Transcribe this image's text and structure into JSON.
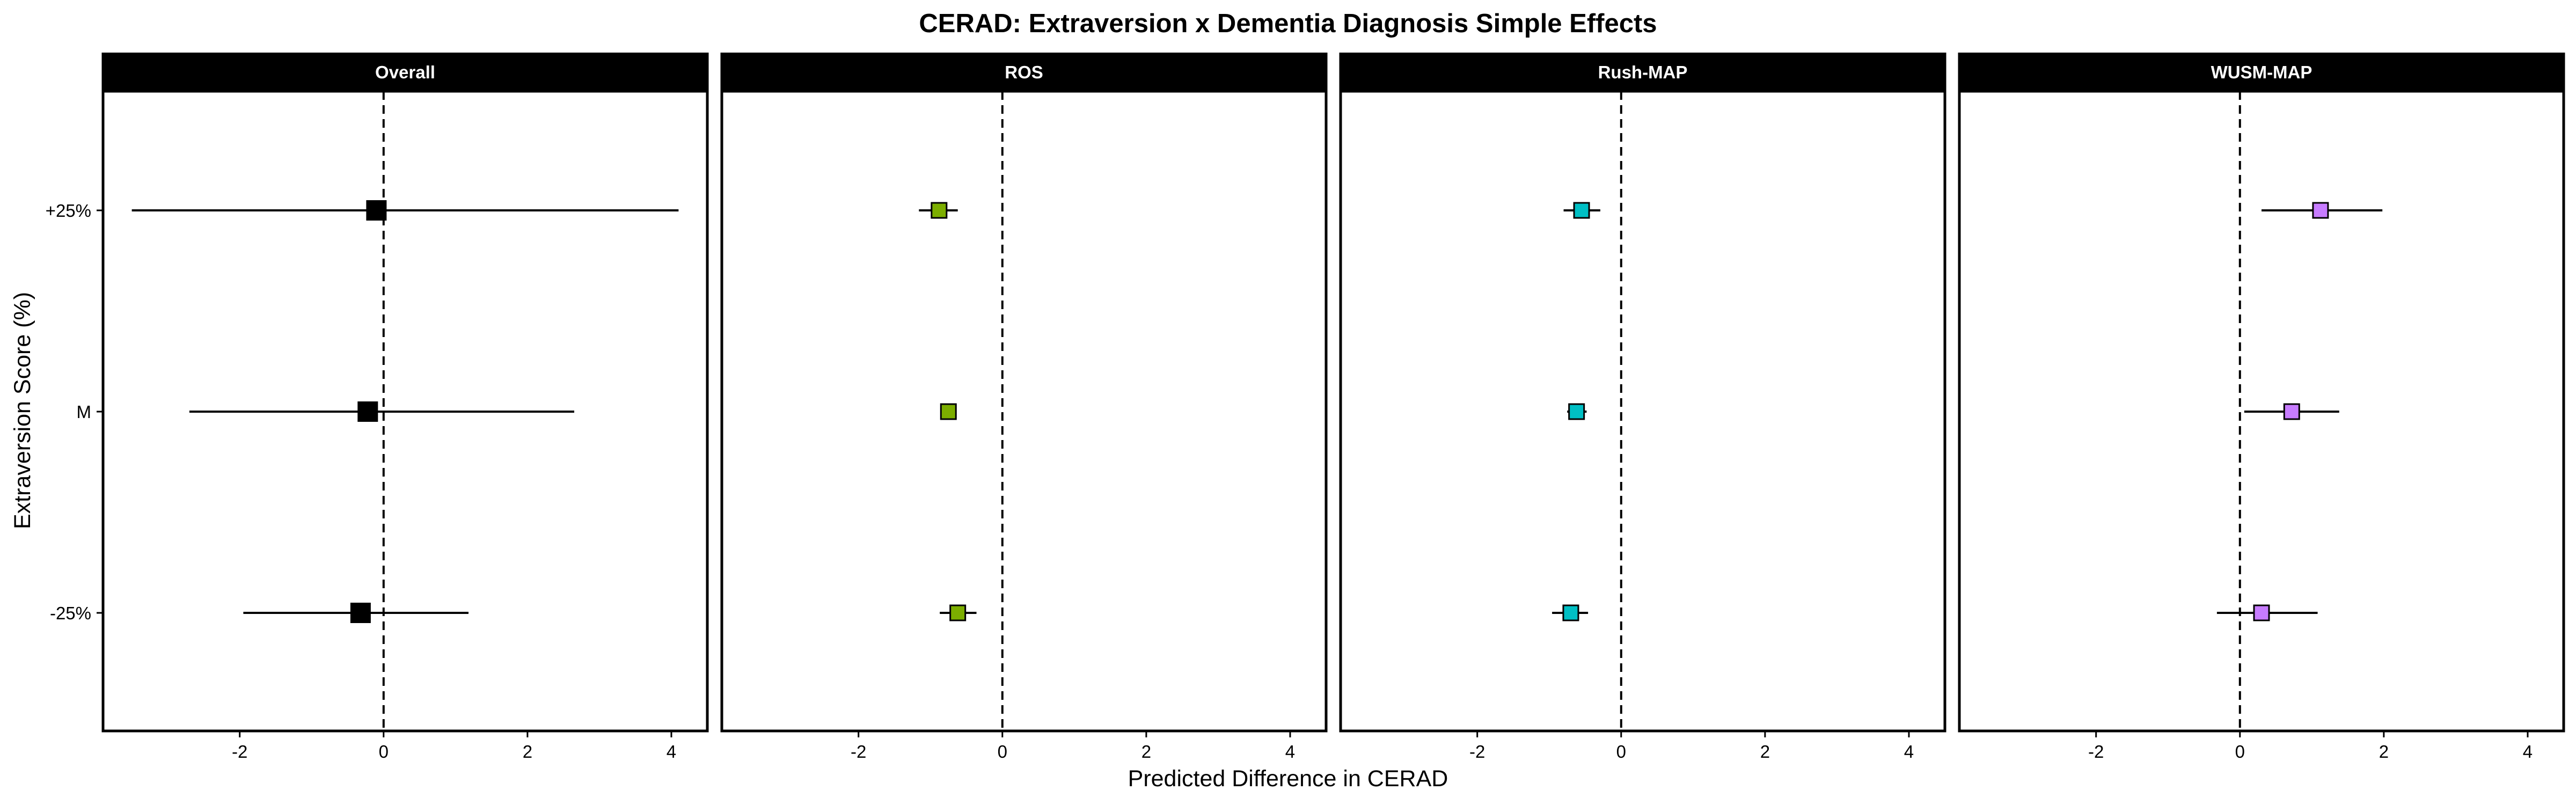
{
  "chart_data": {
    "type": "forest-plot",
    "title": "CERAD: Extraversion x Dementia Diagnosis Simple Effects",
    "xlabel": "Predicted Difference in CERAD",
    "ylabel": "Extraversion Score (%)",
    "xlim": [
      -3.9,
      4.5
    ],
    "x_ticks": [
      -2,
      0,
      2,
      4
    ],
    "x_tick_labels": [
      "-2",
      "0",
      "2",
      "4"
    ],
    "y_categories": [
      "+25%",
      "M",
      "-25%"
    ],
    "reference_line": 0,
    "grid": false,
    "legend": "none",
    "panels": [
      {
        "name": "Overall",
        "color": "#000000",
        "points": [
          {
            "y": "+25%",
            "estimate": -0.1,
            "lower": -3.5,
            "upper": 4.1
          },
          {
            "y": "M",
            "estimate": -0.22,
            "lower": -2.7,
            "upper": 2.65
          },
          {
            "y": "-25%",
            "estimate": -0.32,
            "lower": -1.95,
            "upper": 1.18
          }
        ]
      },
      {
        "name": "ROS",
        "color": "#7CAE00",
        "points": [
          {
            "y": "+25%",
            "estimate": -0.88,
            "lower": -1.16,
            "upper": -0.62
          },
          {
            "y": "M",
            "estimate": -0.75,
            "lower": -0.85,
            "upper": -0.65
          },
          {
            "y": "-25%",
            "estimate": -0.62,
            "lower": -0.87,
            "upper": -0.36
          }
        ]
      },
      {
        "name": "Rush-MAP",
        "color": "#00BFC4",
        "points": [
          {
            "y": "+25%",
            "estimate": -0.55,
            "lower": -0.8,
            "upper": -0.29
          },
          {
            "y": "M",
            "estimate": -0.62,
            "lower": -0.75,
            "upper": -0.48
          },
          {
            "y": "-25%",
            "estimate": -0.7,
            "lower": -0.96,
            "upper": -0.46
          }
        ]
      },
      {
        "name": "WUSM-MAP",
        "color": "#C77CFF",
        "points": [
          {
            "y": "+25%",
            "estimate": 1.12,
            "lower": 0.3,
            "upper": 1.98
          },
          {
            "y": "M",
            "estimate": 0.72,
            "lower": 0.06,
            "upper": 1.38
          },
          {
            "y": "-25%",
            "estimate": 0.3,
            "lower": -0.32,
            "upper": 1.08
          }
        ]
      }
    ]
  }
}
